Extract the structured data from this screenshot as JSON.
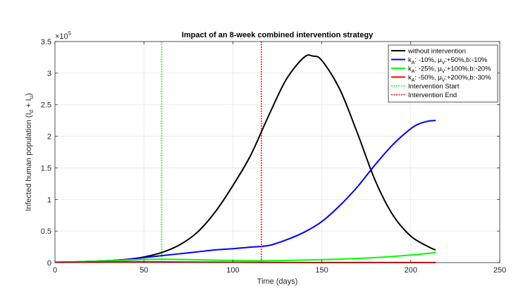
{
  "chart_data": {
    "type": "line",
    "title": "Impact of an 8-week combined intervention strategy",
    "xlabel": "Time (days)",
    "ylabel": "Infected human population (I",
    "ylabel_sub_d": "d",
    "ylabel_plus": " + I",
    "ylabel_sub_u": "u",
    "ylabel_close": ")",
    "xlim": [
      0,
      250
    ],
    "ylim": [
      0,
      3.5
    ],
    "xticks": [
      0,
      50,
      100,
      150,
      200,
      250
    ],
    "yticks": [
      0,
      0.5,
      1,
      1.5,
      2,
      2.5,
      3,
      3.5
    ],
    "xtick_labels": [
      "0",
      "50",
      "100",
      "150",
      "200",
      "250"
    ],
    "ytick_labels": [
      "0",
      "0.5",
      "1",
      "1.5",
      "2",
      "2.5",
      "3",
      "3.5"
    ],
    "y_exponent_base": "×10",
    "y_exponent_power": "5",
    "grid": true,
    "legend_position": "top-right",
    "series": [
      {
        "name": "without intervention",
        "color": "#000000",
        "x": [
          0,
          10,
          20,
          30,
          40,
          50,
          60,
          70,
          80,
          90,
          100,
          110,
          120,
          130,
          140,
          145,
          150,
          160,
          170,
          180,
          190,
          200,
          210,
          214
        ],
        "values": [
          0.005,
          0.01,
          0.02,
          0.03,
          0.05,
          0.09,
          0.16,
          0.28,
          0.48,
          0.8,
          1.22,
          1.7,
          2.32,
          2.9,
          3.25,
          3.27,
          3.2,
          2.75,
          2.05,
          1.3,
          0.75,
          0.42,
          0.25,
          0.2
        ]
      },
      {
        "name_pre": "k",
        "name_sub_a": "A",
        "name_mid": ": -10%, μ",
        "name_sub_v": "V",
        "name_post": ":+50%,b:-10%",
        "color": "#0000ff",
        "x": [
          0,
          10,
          20,
          30,
          40,
          50,
          60,
          70,
          80,
          90,
          100,
          110,
          120,
          130,
          140,
          150,
          160,
          170,
          180,
          190,
          200,
          205,
          210,
          214
        ],
        "values": [
          0.005,
          0.01,
          0.02,
          0.03,
          0.05,
          0.08,
          0.11,
          0.14,
          0.17,
          0.2,
          0.22,
          0.245,
          0.27,
          0.36,
          0.48,
          0.65,
          0.9,
          1.2,
          1.55,
          1.87,
          2.12,
          2.2,
          2.24,
          2.25
        ]
      },
      {
        "name_pre": "k",
        "name_sub_a": "A",
        "name_mid": ": -25%, μ",
        "name_sub_v": "V",
        "name_post": ":+100%,b:-20%",
        "color": "#00ff00",
        "x": [
          0,
          20,
          40,
          50,
          60,
          70,
          80,
          100,
          120,
          140,
          160,
          180,
          200,
          214
        ],
        "values": [
          0.005,
          0.02,
          0.04,
          0.05,
          0.055,
          0.05,
          0.045,
          0.035,
          0.03,
          0.04,
          0.055,
          0.08,
          0.12,
          0.16
        ]
      },
      {
        "name_pre": "k",
        "name_sub_a": "A",
        "name_mid": ": -50%, μ",
        "name_sub_v": "V",
        "name_post": ":+200%,b:-30%",
        "color": "#ff0000",
        "x": [
          0,
          20,
          40,
          60,
          80,
          100,
          120,
          140,
          160,
          180,
          200,
          214
        ],
        "values": [
          0.005,
          0.01,
          0.015,
          0.012,
          0.008,
          0.005,
          0.003,
          0.002,
          0.002,
          0.001,
          0.001,
          0.001
        ]
      }
    ],
    "vlines": [
      {
        "name": "Intervention Start",
        "x": 60,
        "color": "#00ff00"
      },
      {
        "name": "Intervention End",
        "x": 116,
        "color": "#ff0000"
      }
    ]
  }
}
